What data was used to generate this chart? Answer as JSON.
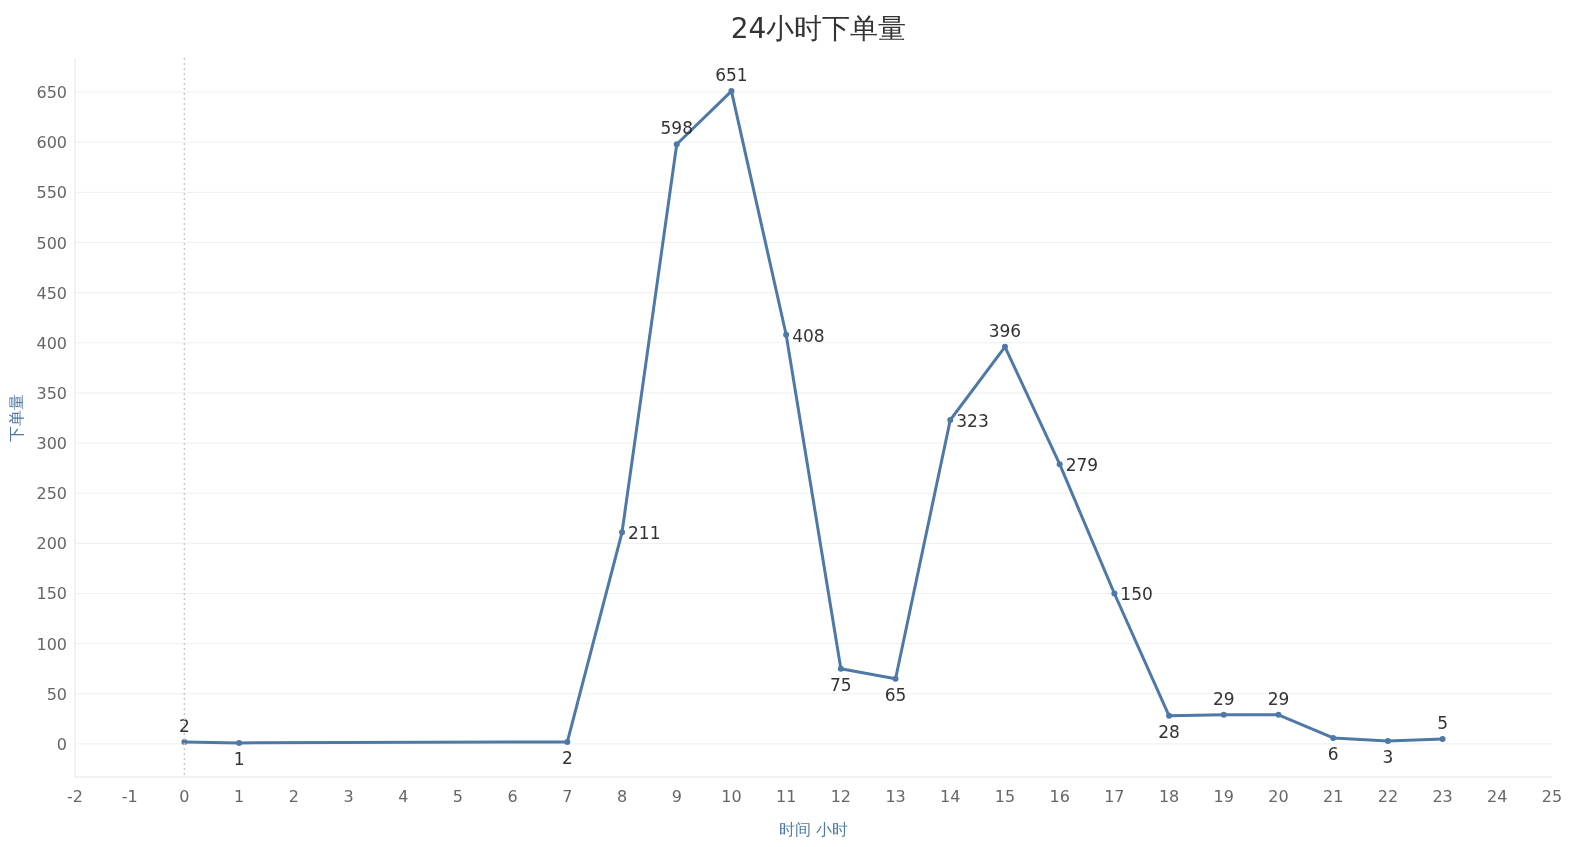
{
  "chart_data": {
    "type": "line",
    "title": "24小时下单量",
    "xlabel": "时间 小时",
    "ylabel": "下单量",
    "x": [
      0,
      1,
      7,
      8,
      9,
      10,
      11,
      12,
      13,
      14,
      15,
      16,
      17,
      18,
      19,
      20,
      21,
      22,
      23
    ],
    "series": [
      {
        "color": "#4e79a7",
        "values": [
          2,
          1,
          2,
          211,
          598,
          651,
          408,
          75,
          65,
          323,
          396,
          279,
          150,
          28,
          29,
          29,
          6,
          3,
          5
        ]
      }
    ],
    "xlim": [
      -2,
      25
    ],
    "xticks": [
      -2,
      -1,
      0,
      1,
      2,
      3,
      4,
      5,
      6,
      7,
      8,
      9,
      10,
      11,
      12,
      13,
      14,
      15,
      16,
      17,
      18,
      19,
      20,
      21,
      22,
      23,
      24,
      25
    ],
    "ylim": [
      -33,
      684
    ],
    "yticks": [
      0,
      50,
      100,
      150,
      200,
      250,
      300,
      350,
      400,
      450,
      500,
      550,
      600,
      650
    ],
    "grid": "y",
    "marker": "circle",
    "line_style": "solid",
    "data_labels": true,
    "ref_lines": [
      {
        "axis": "x",
        "value": 0,
        "color": "#c8c8c8",
        "line_style": "dotted"
      }
    ]
  }
}
